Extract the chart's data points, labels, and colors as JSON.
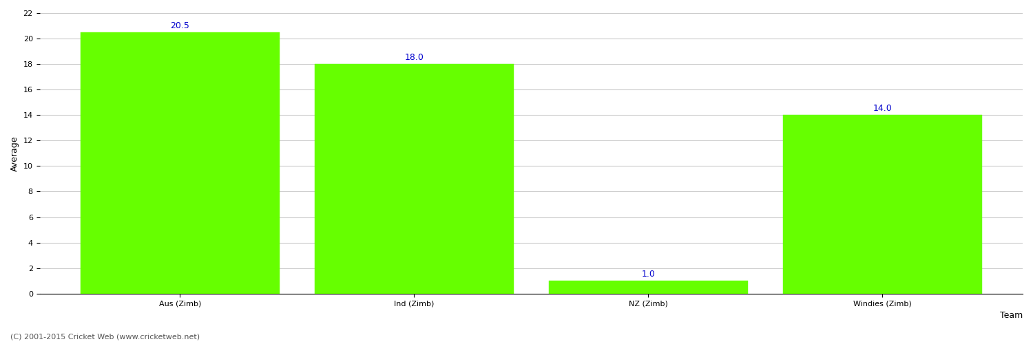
{
  "categories": [
    "Aus (Zimb)",
    "Ind (Zimb)",
    "NZ (Zimb)",
    "Windies (Zimb)"
  ],
  "values": [
    20.5,
    18.0,
    1.0,
    14.0
  ],
  "bar_color": "#66ff00",
  "bar_edge_color": "#66ff00",
  "annotation_color": "#0000cc",
  "annotation_fontsize": 9,
  "xlabel": "Team",
  "ylabel": "Average",
  "ylim": [
    0,
    22
  ],
  "yticks": [
    0,
    2,
    4,
    6,
    8,
    10,
    12,
    14,
    16,
    18,
    20,
    22
  ],
  "grid_color": "#cccccc",
  "background_color": "#ffffff",
  "fig_width": 15.0,
  "fig_height": 5.0,
  "footnote": "(C) 2001-2015 Cricket Web (www.cricketweb.net)",
  "footnote_fontsize": 8,
  "footnote_color": "#555555",
  "xlabel_fontsize": 9,
  "ylabel_fontsize": 9,
  "tick_fontsize": 8,
  "bar_width": 0.85
}
